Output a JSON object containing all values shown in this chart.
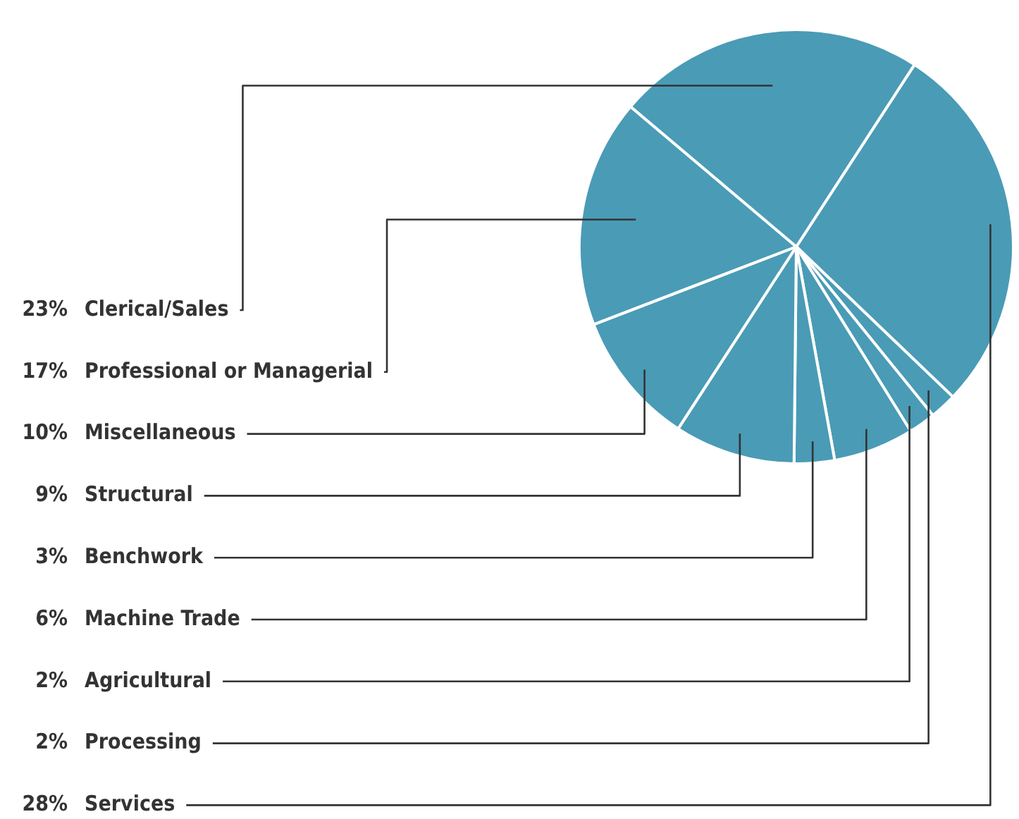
{
  "chart_data": {
    "type": "pie",
    "categories": [
      "Clerical/Sales",
      "Professional or Managerial",
      "Miscellaneous",
      "Structural",
      "Benchwork",
      "Machine Trade",
      "Agricultural",
      "Processing",
      "Services"
    ],
    "values": [
      23,
      17,
      10,
      9,
      3,
      6,
      2,
      2,
      28
    ],
    "value_labels": [
      "23%",
      "17%",
      "10%",
      "9%",
      "3%",
      "6%",
      "2%",
      "2%",
      "28%"
    ],
    "colors": [
      "#4a9bb6",
      "#4a9bb6",
      "#4a9bb6",
      "#4a9bb6",
      "#4a9bb6",
      "#4a9bb6",
      "#4a9bb6",
      "#4a9bb6",
      "#4a9bb6"
    ]
  }
}
